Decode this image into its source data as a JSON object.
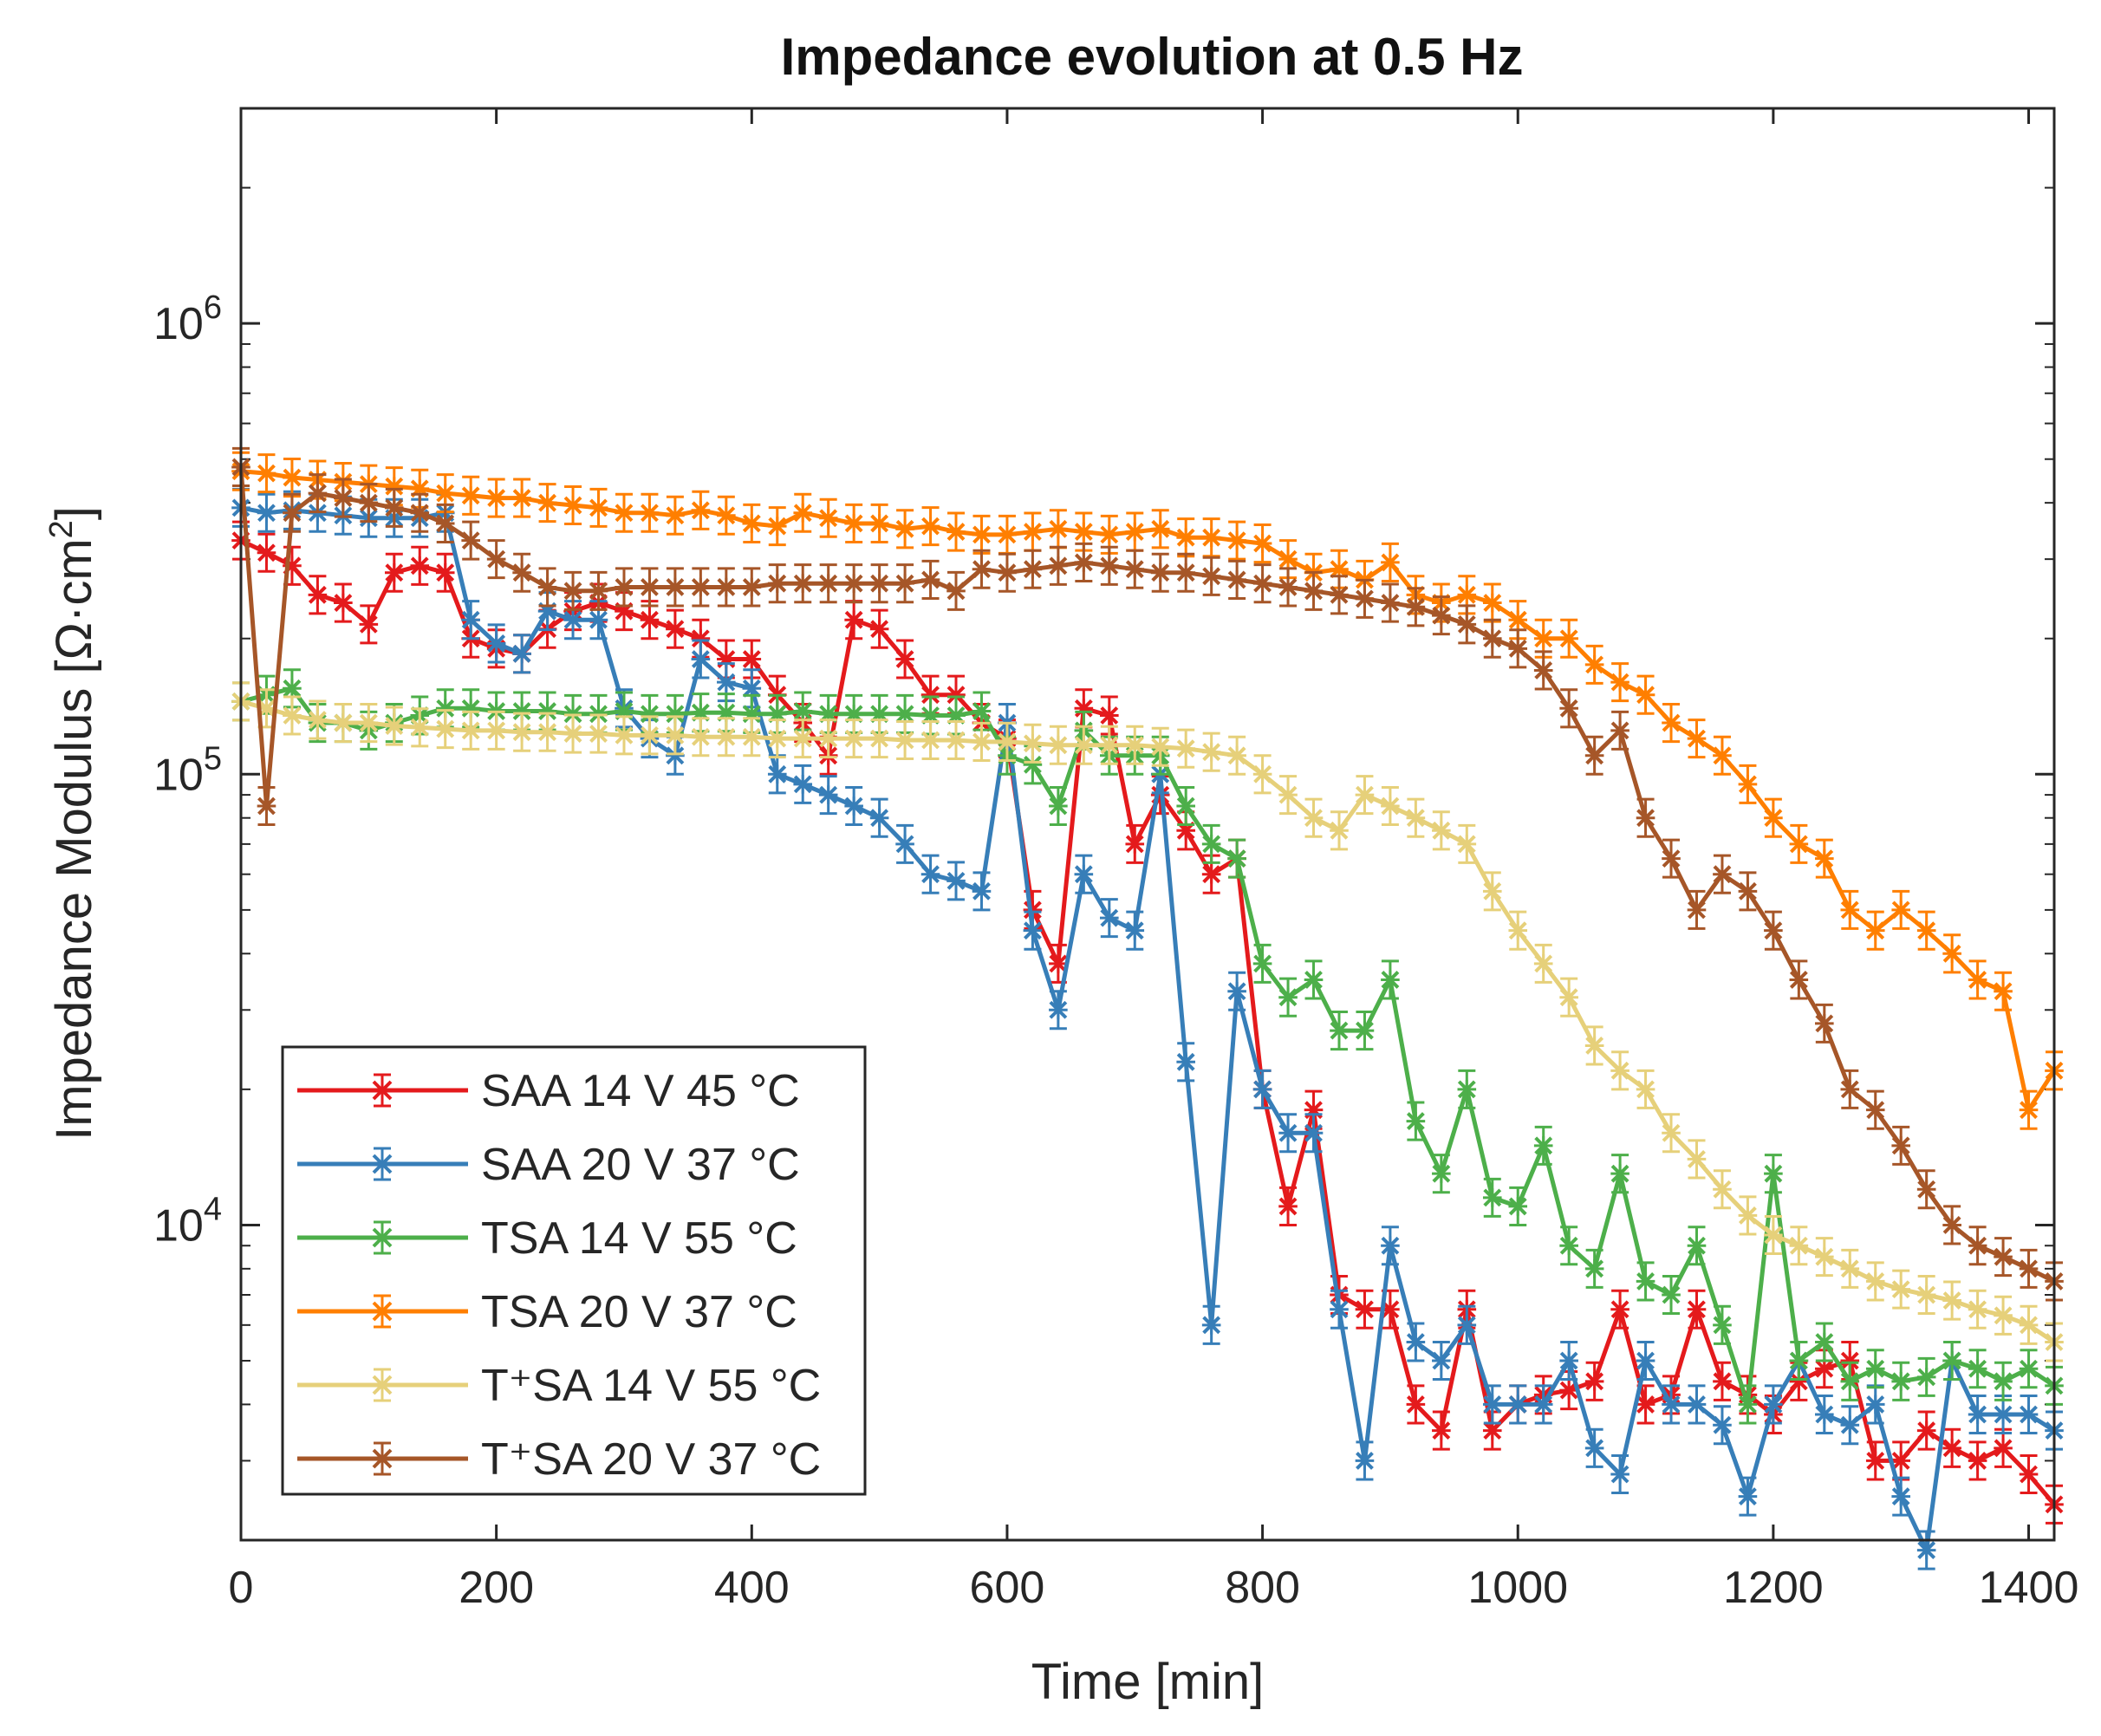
{
  "chart_data": {
    "type": "line",
    "title": "Impedance evolution at 0.5 Hz",
    "xlabel": "Time [min]",
    "ylabel": "Impedance Modulus [Ω·cm²]",
    "ylabel_main": "Impedance Modulus [Ω·cm",
    "ylabel_sup": "2",
    "ylabel_end": "]",
    "xlim": [
      0,
      1420
    ],
    "ylim": [
      2000,
      3000000
    ],
    "yscale": "log",
    "xticks": [
      0,
      200,
      400,
      600,
      800,
      1000,
      1200,
      1400
    ],
    "xtick_labels": [
      "0",
      "200",
      "400",
      "600",
      "800",
      "1000",
      "1200",
      "1400"
    ],
    "ytick_decades": [
      {
        "value": 10000,
        "base": "10",
        "exp": "4"
      },
      {
        "value": 100000,
        "base": "10",
        "exp": "5"
      },
      {
        "value": 1000000,
        "base": "10",
        "exp": "6"
      }
    ],
    "legend_position": "bottom-left",
    "series": [
      {
        "name": "SAA 14 V 45 °C",
        "color": "#e41a1c",
        "x": [
          0,
          20,
          40,
          60,
          80,
          100,
          120,
          140,
          160,
          180,
          200,
          220,
          240,
          260,
          280,
          300,
          320,
          340,
          360,
          380,
          400,
          420,
          440,
          460,
          480,
          500,
          520,
          540,
          560,
          580,
          600,
          620,
          640,
          660,
          680,
          700,
          720,
          740,
          760,
          780,
          800,
          820,
          840,
          860,
          880,
          900,
          920,
          940,
          960,
          980,
          1000,
          1020,
          1040,
          1060,
          1080,
          1100,
          1120,
          1140,
          1160,
          1180,
          1200,
          1220,
          1240,
          1260,
          1280,
          1300,
          1320,
          1340,
          1360,
          1380,
          1400,
          1420
        ],
        "y": [
          330000,
          310000,
          290000,
          250000,
          240000,
          215000,
          280000,
          290000,
          280000,
          200000,
          190000,
          185000,
          210000,
          230000,
          240000,
          230000,
          220000,
          210000,
          200000,
          180000,
          180000,
          150000,
          130000,
          110000,
          220000,
          210000,
          180000,
          150000,
          150000,
          130000,
          120000,
          50000,
          38000,
          140000,
          135000,
          70000,
          90000,
          75000,
          60000,
          65000,
          20000,
          11000,
          18000,
          7000,
          6500,
          6500,
          4000,
          3500,
          6500,
          3500,
          4000,
          4200,
          4300,
          4500,
          6500,
          4000,
          4200,
          6500,
          4500,
          4200,
          3800,
          4500,
          4800,
          5000,
          3000,
          3000,
          3500,
          3200,
          3000,
          3200,
          2800,
          2400
        ]
      },
      {
        "name": "SAA 20 V 37 °C",
        "color": "#377eb8",
        "x": [
          0,
          20,
          40,
          60,
          80,
          100,
          120,
          140,
          160,
          180,
          200,
          220,
          240,
          260,
          280,
          300,
          320,
          340,
          360,
          380,
          400,
          420,
          440,
          460,
          480,
          500,
          520,
          540,
          560,
          580,
          600,
          620,
          640,
          660,
          680,
          700,
          720,
          740,
          760,
          780,
          800,
          820,
          840,
          860,
          880,
          900,
          920,
          940,
          960,
          980,
          1000,
          1020,
          1040,
          1060,
          1080,
          1100,
          1120,
          1140,
          1160,
          1180,
          1200,
          1220,
          1240,
          1260,
          1280,
          1300,
          1320,
          1340,
          1360,
          1380,
          1400,
          1420
        ],
        "y": [
          390000,
          380000,
          385000,
          380000,
          375000,
          370000,
          370000,
          370000,
          380000,
          220000,
          195000,
          185000,
          230000,
          220000,
          220000,
          140000,
          120000,
          110000,
          180000,
          160000,
          155000,
          100000,
          95000,
          90000,
          85000,
          80000,
          70000,
          60000,
          58000,
          55000,
          130000,
          45000,
          30000,
          60000,
          48000,
          45000,
          100000,
          23000,
          6000,
          33000,
          20000,
          16000,
          16000,
          6500,
          3000,
          9000,
          5500,
          5000,
          6000,
          4000,
          4000,
          4000,
          5000,
          3200,
          2800,
          5000,
          4000,
          4000,
          3600,
          2500,
          4000,
          5000,
          3800,
          3600,
          4000,
          2500,
          1900,
          5000,
          3800,
          3800,
          3800,
          3500
        ]
      },
      {
        "name": "TSA 14 V 55 °C",
        "color": "#4daf4a",
        "x": [
          0,
          20,
          40,
          60,
          80,
          100,
          120,
          140,
          160,
          180,
          200,
          220,
          240,
          260,
          280,
          300,
          320,
          340,
          360,
          380,
          400,
          420,
          440,
          460,
          480,
          500,
          520,
          540,
          560,
          580,
          600,
          620,
          640,
          660,
          680,
          700,
          720,
          740,
          760,
          780,
          800,
          820,
          840,
          860,
          880,
          900,
          920,
          940,
          960,
          980,
          1000,
          1020,
          1040,
          1060,
          1080,
          1100,
          1120,
          1140,
          1160,
          1180,
          1200,
          1220,
          1240,
          1260,
          1280,
          1300,
          1320,
          1340,
          1360,
          1380,
          1400,
          1420
        ],
        "y": [
          145000,
          150000,
          155000,
          130000,
          130000,
          125000,
          130000,
          135000,
          140000,
          140000,
          138000,
          138000,
          138000,
          136000,
          136000,
          138000,
          136000,
          136000,
          137000,
          137000,
          136000,
          136000,
          138000,
          136000,
          136000,
          136000,
          136000,
          135000,
          135000,
          138000,
          110000,
          105000,
          85000,
          125000,
          110000,
          110000,
          110000,
          85000,
          70000,
          65000,
          38000,
          32000,
          35000,
          27000,
          27000,
          35000,
          17000,
          13000,
          20000,
          11500,
          11000,
          15000,
          9000,
          8000,
          13000,
          7500,
          7000,
          9000,
          6000,
          4000,
          13000,
          5000,
          5500,
          4500,
          4800,
          4500,
          4600,
          5000,
          4800,
          4500,
          4800,
          4400
        ]
      },
      {
        "name": "TSA 20 V 37 °C",
        "color": "#ff7f00",
        "x": [
          0,
          20,
          40,
          60,
          80,
          100,
          120,
          140,
          160,
          180,
          200,
          220,
          240,
          260,
          280,
          300,
          320,
          340,
          360,
          380,
          400,
          420,
          440,
          460,
          480,
          500,
          520,
          540,
          560,
          580,
          600,
          620,
          640,
          660,
          680,
          700,
          720,
          740,
          760,
          780,
          800,
          820,
          840,
          860,
          880,
          900,
          920,
          940,
          960,
          980,
          1000,
          1020,
          1040,
          1060,
          1080,
          1100,
          1120,
          1140,
          1160,
          1180,
          1200,
          1220,
          1240,
          1260,
          1280,
          1300,
          1320,
          1340,
          1360,
          1380,
          1400,
          1420
        ],
        "y": [
          470000,
          465000,
          455000,
          450000,
          445000,
          440000,
          435000,
          430000,
          420000,
          415000,
          410000,
          410000,
          400000,
          395000,
          390000,
          380000,
          380000,
          375000,
          385000,
          375000,
          360000,
          355000,
          380000,
          370000,
          360000,
          360000,
          350000,
          355000,
          345000,
          340000,
          340000,
          345000,
          350000,
          345000,
          340000,
          345000,
          350000,
          335000,
          335000,
          330000,
          325000,
          300000,
          280000,
          285000,
          270000,
          295000,
          250000,
          240000,
          250000,
          240000,
          220000,
          200000,
          200000,
          175000,
          160000,
          150000,
          130000,
          120000,
          110000,
          95000,
          80000,
          70000,
          65000,
          50000,
          45000,
          50000,
          45000,
          40000,
          35000,
          33000,
          18000,
          22000
        ]
      },
      {
        "name": "T⁺SA 14 V 55 °C",
        "color": "#e6d07a",
        "x": [
          0,
          20,
          40,
          60,
          80,
          100,
          120,
          140,
          160,
          180,
          200,
          220,
          240,
          260,
          280,
          300,
          320,
          340,
          360,
          380,
          400,
          420,
          440,
          460,
          480,
          500,
          520,
          540,
          560,
          580,
          600,
          620,
          640,
          660,
          680,
          700,
          720,
          740,
          760,
          780,
          800,
          820,
          840,
          860,
          880,
          900,
          920,
          940,
          960,
          980,
          1000,
          1020,
          1040,
          1060,
          1080,
          1100,
          1120,
          1140,
          1160,
          1180,
          1200,
          1220,
          1240,
          1260,
          1280,
          1300,
          1320,
          1340,
          1360,
          1380,
          1400,
          1420
        ],
        "y": [
          145000,
          140000,
          135000,
          132000,
          130000,
          130000,
          128000,
          127000,
          126000,
          125000,
          125000,
          124000,
          124000,
          123000,
          123000,
          122000,
          122000,
          122000,
          121000,
          121000,
          121000,
          120000,
          120000,
          120000,
          120000,
          120000,
          119000,
          119000,
          119000,
          118000,
          118000,
          117000,
          116000,
          116000,
          116000,
          116000,
          115000,
          114000,
          112000,
          110000,
          100000,
          90000,
          80000,
          75000,
          90000,
          85000,
          80000,
          75000,
          70000,
          55000,
          45000,
          38000,
          32000,
          25000,
          22000,
          20000,
          16000,
          14000,
          12000,
          10500,
          9500,
          9000,
          8500,
          8000,
          7500,
          7200,
          7000,
          6800,
          6500,
          6300,
          6000,
          5500
        ]
      },
      {
        "name": "T⁺SA 20 V 37 °C",
        "color": "#a65628",
        "x": [
          0,
          20,
          40,
          60,
          80,
          100,
          120,
          140,
          160,
          180,
          200,
          220,
          240,
          260,
          280,
          300,
          320,
          340,
          360,
          380,
          400,
          420,
          440,
          460,
          480,
          500,
          520,
          540,
          560,
          580,
          600,
          620,
          640,
          660,
          680,
          700,
          720,
          740,
          760,
          780,
          800,
          820,
          840,
          860,
          880,
          900,
          920,
          940,
          960,
          980,
          1000,
          1020,
          1040,
          1060,
          1080,
          1100,
          1120,
          1140,
          1160,
          1180,
          1200,
          1220,
          1240,
          1260,
          1280,
          1300,
          1320,
          1340,
          1360,
          1380,
          1400,
          1420
        ],
        "y": [
          480000,
          85000,
          380000,
          420000,
          410000,
          400000,
          390000,
          380000,
          360000,
          330000,
          300000,
          280000,
          260000,
          255000,
          255000,
          260000,
          260000,
          260000,
          260000,
          260000,
          260000,
          265000,
          265000,
          265000,
          265000,
          265000,
          265000,
          270000,
          255000,
          285000,
          280000,
          285000,
          290000,
          295000,
          290000,
          285000,
          280000,
          280000,
          275000,
          270000,
          265000,
          260000,
          255000,
          250000,
          245000,
          240000,
          235000,
          225000,
          215000,
          200000,
          190000,
          170000,
          140000,
          110000,
          125000,
          80000,
          65000,
          50000,
          60000,
          55000,
          45000,
          35000,
          28000,
          20000,
          18000,
          15000,
          12000,
          10000,
          9000,
          8500,
          8000,
          7500
        ]
      }
    ]
  }
}
